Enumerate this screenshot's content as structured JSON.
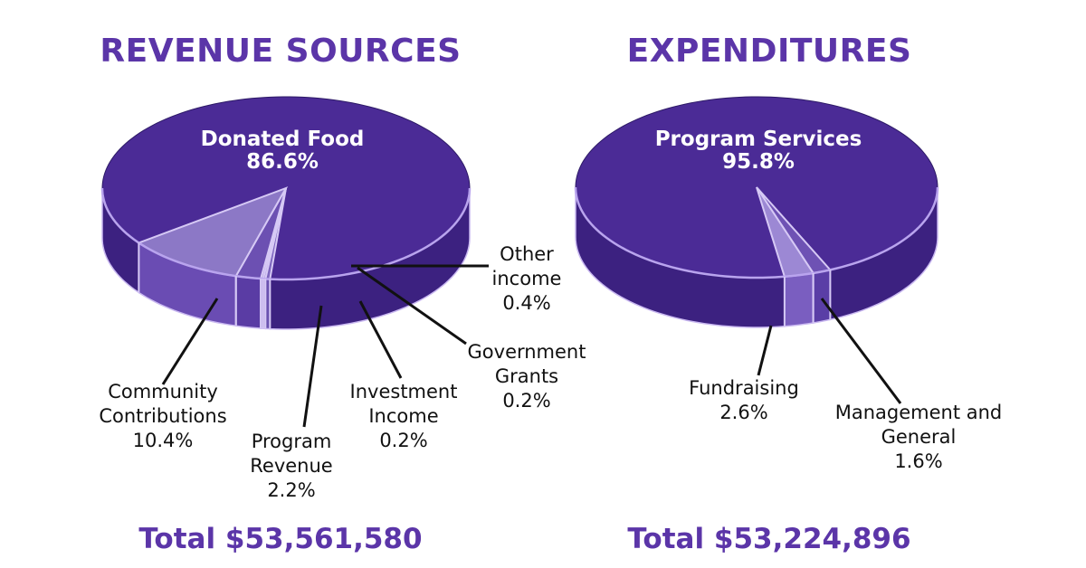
{
  "chart_data": [
    {
      "type": "pie",
      "title": "REVENUE SOURCES",
      "total_label": "Total $53,561,580",
      "slices": [
        {
          "label_lines": [
            "Donated Food"
          ],
          "value": 86.6,
          "value_label": "86.6%",
          "color": "#4b2b96",
          "side": "#3c2180"
        },
        {
          "label_lines": [
            "Community",
            "Contributions"
          ],
          "value": 10.4,
          "value_label": "10.4%",
          "color": "#8c78c6",
          "side": "#6a4cb3"
        },
        {
          "label_lines": [
            "Program",
            "Revenue"
          ],
          "value": 2.2,
          "value_label": "2.2%",
          "color": "#6c50b2",
          "side": "#5a3ca4"
        },
        {
          "label_lines": [
            "Investment",
            "Income"
          ],
          "value": 0.2,
          "value_label": "0.2%",
          "color": "#9a86d2",
          "side": "#8a74c8"
        },
        {
          "label_lines": [
            "Government",
            "Grants"
          ],
          "value": 0.2,
          "value_label": "0.2%",
          "color": "#9a86d2",
          "side": "#8a74c8"
        },
        {
          "label_lines": [
            "Other",
            "income"
          ],
          "value": 0.4,
          "value_label": "0.4%",
          "color": "#7d66be",
          "side": "#6a52b0"
        }
      ]
    },
    {
      "type": "pie",
      "title": "EXPENDITURES",
      "total_label": "Total $53,224,896",
      "slices": [
        {
          "label_lines": [
            "Program Services"
          ],
          "value": 95.8,
          "value_label": "95.8%",
          "color": "#4b2b96",
          "side": "#3c2180"
        },
        {
          "label_lines": [
            "Fundraising"
          ],
          "value": 2.6,
          "value_label": "2.6%",
          "color": "#9c88d4",
          "side": "#7a5ec0"
        },
        {
          "label_lines": [
            "Management and",
            "General"
          ],
          "value": 1.6,
          "value_label": "1.6%",
          "color": "#6e52b4",
          "side": "#5a3ea6"
        }
      ]
    }
  ]
}
